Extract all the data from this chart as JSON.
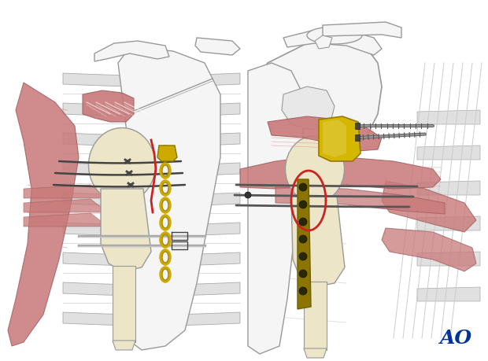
{
  "background_color": "#ffffff",
  "ao_text": "AO",
  "ao_color": "#003399",
  "bone_light": "#f0ede0",
  "bone_mid": "#e8e4d0",
  "bone_outline": "#999999",
  "bone_shadow": "#cccccc",
  "muscle_pink": "#c87878",
  "muscle_outline": "#a06060",
  "muscle_light": "#e8b0a0",
  "rib_fill": "#e8e8e8",
  "rib_outline": "#bbbbbb",
  "wire_dark": "#444444",
  "wire_gray": "#666666",
  "red_suture": "#cc2222",
  "gold_plate": "#8B7500",
  "gold_chain": "#ccaa00",
  "screw_dark": "#555555",
  "implant_cream": "#ece5c8",
  "implant_outline": "#999999",
  "yellow_graft": "#d4b800",
  "white_bone": "#f5f5f5",
  "gray_light": "#dddddd",
  "cerclage_silver": "#aaaaaa"
}
